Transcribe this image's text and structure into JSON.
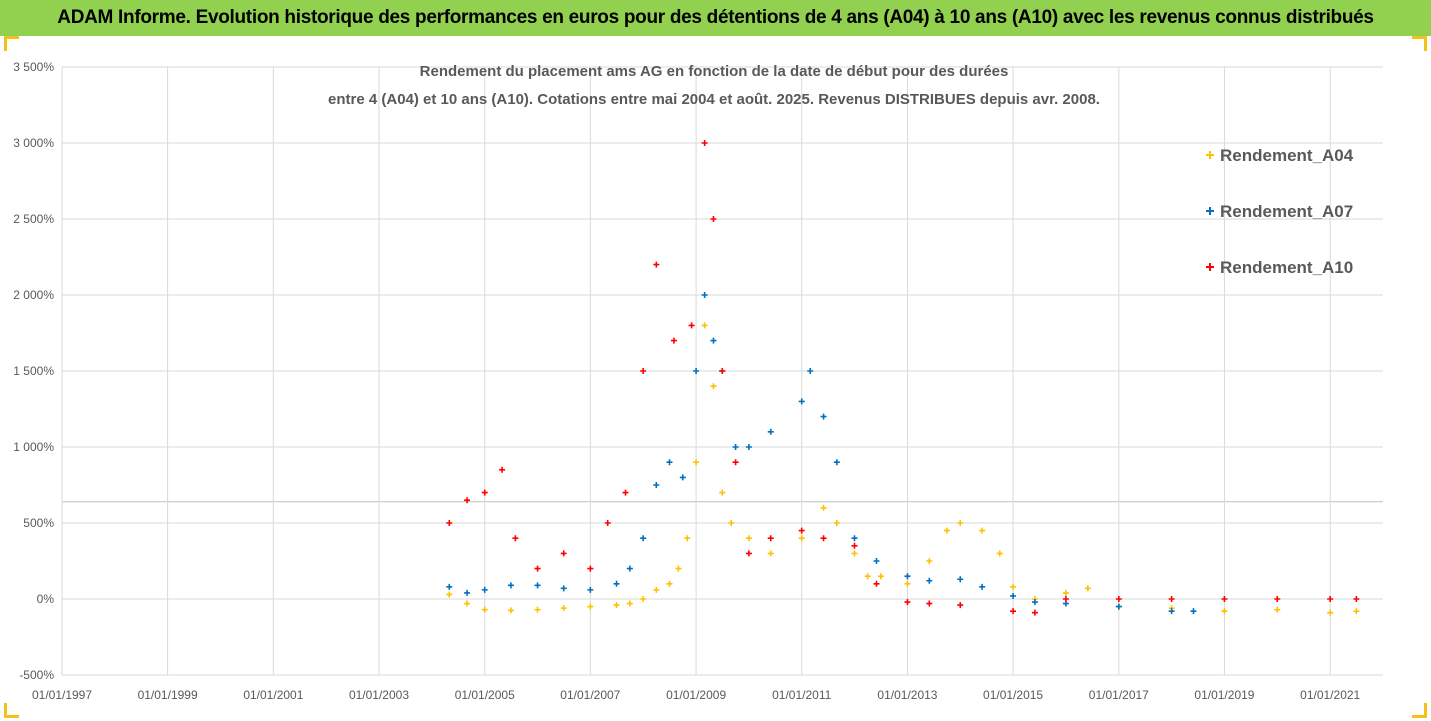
{
  "header": {
    "title": "ADAM Informe. Evolution historique des performances en euros pour des détentions de 4 ans (A04) à 10 ans (A10) avec les revenus connus distribués"
  },
  "colors": {
    "header_bg": "#92d050",
    "frame_accent": "#f4c01a"
  },
  "chart_data": {
    "type": "scatter",
    "title_lines": [
      "Rendement du placement ams AG en fonction de la date de début pour des durées",
      "entre 4 (A04) et 10 ans (A10). Cotations entre mai 2004 et août. 2025. Revenus DISTRIBUES depuis avr. 2008."
    ],
    "x_tick_labels": [
      "01/01/1997",
      "01/01/1999",
      "01/01/2001",
      "01/01/2003",
      "01/01/2005",
      "01/01/2007",
      "01/01/2009",
      "01/01/2011",
      "01/01/2013",
      "01/01/2015",
      "01/01/2017",
      "01/01/2019",
      "01/01/2021"
    ],
    "x_range": [
      "1997-01-01",
      "2022-01-01"
    ],
    "y_tick_labels": [
      "-500%",
      "0%",
      "500%",
      "1 000%",
      "1 500%",
      "2 000%",
      "2 500%",
      "3 000%",
      "3 500%"
    ],
    "y_range": [
      -500,
      3500
    ],
    "y_unit": "%",
    "legend_position": "right",
    "series": [
      {
        "name": "Rendement_A04",
        "color": "#ffc000",
        "x": [
          "2004-05-01",
          "2004-09-01",
          "2005-01-01",
          "2005-07-01",
          "2006-01-01",
          "2006-07-01",
          "2007-01-01",
          "2007-07-01",
          "2007-10-01",
          "2008-01-01",
          "2008-04-01",
          "2008-07-01",
          "2008-09-01",
          "2008-11-01",
          "2009-01-01",
          "2009-03-01",
          "2009-05-01",
          "2009-07-01",
          "2009-09-01",
          "2010-01-01",
          "2010-06-01",
          "2011-01-01",
          "2011-06-01",
          "2011-09-01",
          "2012-01-01",
          "2012-04-01",
          "2012-07-01",
          "2013-01-01",
          "2013-06-01",
          "2013-10-01",
          "2014-01-01",
          "2014-06-01",
          "2014-10-01",
          "2015-01-01",
          "2015-06-01",
          "2016-01-01",
          "2016-06-01",
          "2017-01-01",
          "2018-01-01",
          "2019-01-01",
          "2020-01-01",
          "2021-01-01",
          "2021-07-01"
        ],
        "y": [
          30,
          -30,
          -70,
          -75,
          -70,
          -60,
          -50,
          -40,
          -30,
          0,
          60,
          100,
          200,
          400,
          900,
          1800,
          1400,
          700,
          500,
          400,
          300,
          400,
          600,
          500,
          300,
          150,
          150,
          100,
          250,
          450,
          500,
          450,
          300,
          80,
          0,
          40,
          70,
          -50,
          -60,
          -80,
          -70,
          -90,
          -80
        ]
      },
      {
        "name": "Rendement_A07",
        "color": "#0070c0",
        "x": [
          "2004-05-01",
          "2004-09-01",
          "2005-01-01",
          "2005-07-01",
          "2006-01-01",
          "2006-07-01",
          "2007-01-01",
          "2007-07-01",
          "2007-10-01",
          "2008-01-01",
          "2008-04-01",
          "2008-07-01",
          "2008-10-01",
          "2009-01-01",
          "2009-03-01",
          "2009-05-01",
          "2009-07-01",
          "2009-10-01",
          "2010-01-01",
          "2010-06-01",
          "2011-01-01",
          "2011-03-01",
          "2011-06-01",
          "2011-09-01",
          "2012-01-01",
          "2012-06-01",
          "2013-01-01",
          "2013-06-01",
          "2014-01-01",
          "2014-06-01",
          "2015-01-01",
          "2015-06-01",
          "2016-01-01",
          "2017-01-01",
          "2018-01-01",
          "2018-06-01"
        ],
        "y": [
          80,
          40,
          60,
          90,
          90,
          70,
          60,
          100,
          200,
          400,
          750,
          900,
          800,
          1500,
          2000,
          1700,
          1500,
          1000,
          1000,
          1100,
          1300,
          1500,
          1200,
          900,
          400,
          250,
          150,
          120,
          130,
          80,
          20,
          -20,
          -30,
          -50,
          -80,
          -80
        ]
      },
      {
        "name": "Rendement_A10",
        "color": "#ff0000",
        "x": [
          "2004-05-01",
          "2004-09-01",
          "2005-01-01",
          "2005-05-01",
          "2005-08-01",
          "2006-01-01",
          "2006-07-01",
          "2007-01-01",
          "2007-05-01",
          "2007-09-01",
          "2008-01-01",
          "2008-04-01",
          "2008-08-01",
          "2008-12-01",
          "2009-03-01",
          "2009-05-01",
          "2009-07-01",
          "2009-10-01",
          "2010-01-01",
          "2010-06-01",
          "2011-01-01",
          "2011-06-01",
          "2012-01-01",
          "2012-06-01",
          "2013-01-01",
          "2013-06-01",
          "2014-01-01",
          "2015-01-01",
          "2015-06-01",
          "2016-01-01",
          "2017-01-01",
          "2018-01-01",
          "2019-01-01",
          "2020-01-01",
          "2021-01-01",
          "2021-07-01"
        ],
        "y": [
          500,
          650,
          700,
          850,
          400,
          200,
          300,
          200,
          500,
          700,
          1500,
          2200,
          1700,
          1800,
          3000,
          2500,
          1500,
          900,
          300,
          400,
          450,
          400,
          350,
          100,
          -20,
          -30,
          -40,
          -80,
          -90,
          0,
          0,
          0,
          0,
          0,
          0,
          0
        ]
      }
    ]
  }
}
